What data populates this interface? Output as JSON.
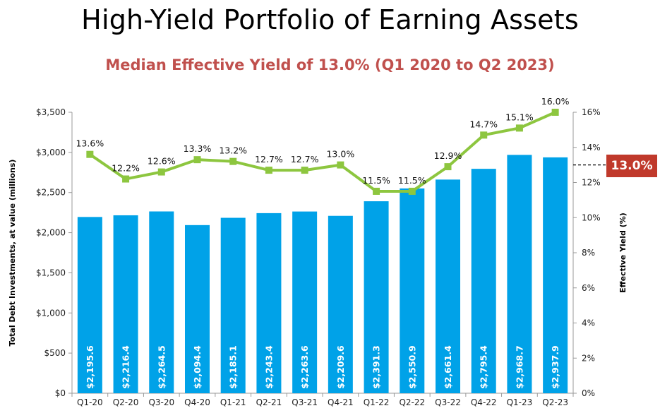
{
  "chart_data": {
    "type": "bar",
    "title": "High-Yield Portfolio of Earning Assets",
    "subtitle": "Median Effective Yield of 13.0% (Q1 2020 to Q2 2023)",
    "categories": [
      "Q1-20",
      "Q2-20",
      "Q3-20",
      "Q4-20",
      "Q1-21",
      "Q2-21",
      "Q3-21",
      "Q4-21",
      "Q1-22",
      "Q2-22",
      "Q3-22",
      "Q4-22",
      "Q1-23",
      "Q2-23"
    ],
    "series": [
      {
        "name": "Total Debt Investments, at value (millions)",
        "type": "bar",
        "axis": "left",
        "values": [
          2195.6,
          2216.4,
          2264.5,
          2094.4,
          2185.1,
          2243.4,
          2263.6,
          2209.6,
          2391.3,
          2550.9,
          2661.4,
          2795.4,
          2968.7,
          2937.9
        ],
        "labels": [
          "$2,195.6",
          "$2,216.4",
          "$2,264.5",
          "$2,094.4",
          "$2,185.1",
          "$2,243.4",
          "$2,263.6",
          "$2,209.6",
          "$2,391.3",
          "$2,550.9",
          "$2,661.4",
          "$2,795.4",
          "$2,968.7",
          "$2,937.9"
        ]
      },
      {
        "name": "Effective Yield (%)",
        "type": "line",
        "axis": "right",
        "values": [
          13.6,
          12.2,
          12.6,
          13.3,
          13.2,
          12.7,
          12.7,
          13.0,
          11.5,
          11.5,
          12.9,
          14.7,
          15.1,
          16.0
        ],
        "labels": [
          "13.6%",
          "12.2%",
          "12.6%",
          "13.3%",
          "13.2%",
          "12.7%",
          "12.7%",
          "13.0%",
          "11.5%",
          "11.5%",
          "12.9%",
          "14.7%",
          "15.1%",
          "16.0%"
        ]
      }
    ],
    "ylabel": "Total Debt Investments, at value  (millions)",
    "y2label": "Effective Yield (%)",
    "ylim": [
      0,
      3500
    ],
    "y2lim": [
      0,
      16
    ],
    "yticks": [
      0,
      500,
      1000,
      1500,
      2000,
      2500,
      3000,
      3500
    ],
    "ytick_labels": [
      "$0",
      "$500",
      "$1,000",
      "$1,500",
      "$2,000",
      "$2,500",
      "$3,000",
      "$3,500"
    ],
    "y2ticks": [
      0,
      2,
      4,
      6,
      8,
      10,
      12,
      14,
      16
    ],
    "y2tick_labels": [
      "0%",
      "2%",
      "4%",
      "6%",
      "8%",
      "10%",
      "12%",
      "14%",
      "16%"
    ],
    "median": {
      "value": 13.0,
      "label": "13.0%"
    },
    "colors": {
      "bar": "#00A2E8",
      "line": "#8DC63F",
      "subtitle": "#C0504D",
      "badge": "#C0392B",
      "axis": "#999999"
    }
  }
}
